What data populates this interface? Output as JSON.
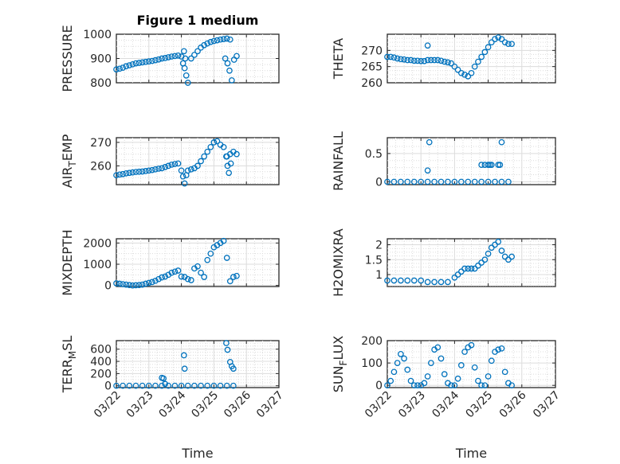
{
  "chart_data": [
    {
      "id": "pressure",
      "type": "scatter",
      "title": "Figure 1 medium",
      "ylabel": "PRESSURE",
      "ylim": [
        800,
        1000
      ],
      "yticks": [
        800,
        900,
        1000
      ],
      "xlim": [
        0,
        5
      ],
      "xticks": [],
      "series": [
        {
          "color": "#0072BD",
          "x": [
            0,
            0.1,
            0.2,
            0.3,
            0.4,
            0.5,
            0.6,
            0.7,
            0.8,
            0.9,
            1.0,
            1.1,
            1.2,
            1.3,
            1.4,
            1.5,
            1.6,
            1.7,
            1.8,
            1.9,
            2.0,
            2.05,
            2.1,
            2.15,
            2.2,
            2.3,
            2.4,
            2.5,
            2.6,
            2.7,
            2.8,
            2.9,
            3.0,
            3.1,
            3.2,
            3.3,
            3.4,
            3.5,
            2.08,
            2.12,
            3.35,
            3.42,
            3.48,
            3.55,
            3.62,
            3.7
          ],
          "y": [
            855,
            858,
            862,
            868,
            872,
            876,
            880,
            882,
            884,
            886,
            888,
            890,
            893,
            896,
            900,
            902,
            905,
            908,
            910,
            912,
            908,
            880,
            860,
            830,
            800,
            900,
            915,
            930,
            945,
            955,
            962,
            968,
            972,
            975,
            978,
            980,
            982,
            978,
            930,
            900,
            900,
            880,
            850,
            810,
            895,
            910
          ]
        }
      ]
    },
    {
      "id": "theta",
      "type": "scatter",
      "ylabel": "THETA",
      "ylim": [
        260,
        275
      ],
      "yticks": [
        260,
        265,
        270
      ],
      "xlim": [
        0,
        5
      ],
      "xticks": [],
      "series": [
        {
          "color": "#0072BD",
          "x": [
            0,
            0.1,
            0.2,
            0.3,
            0.4,
            0.5,
            0.6,
            0.7,
            0.8,
            0.9,
            1.0,
            1.1,
            1.2,
            1.3,
            1.4,
            1.5,
            1.6,
            1.7,
            1.8,
            1.9,
            2.0,
            2.1,
            2.2,
            2.3,
            2.4,
            2.5,
            2.6,
            2.7,
            2.8,
            2.9,
            3.0,
            3.1,
            3.2,
            3.3,
            3.4,
            3.5,
            3.6,
            3.7,
            1.2
          ],
          "y": [
            268,
            268,
            267.8,
            267.5,
            267.3,
            267.2,
            267,
            267,
            266.8,
            266.8,
            266.7,
            266.7,
            267,
            267,
            267,
            267,
            266.8,
            266.5,
            266.3,
            266,
            265,
            264,
            263,
            262.5,
            262,
            263,
            265,
            266.5,
            268,
            269.5,
            271,
            272.5,
            273.5,
            274,
            273.5,
            272.5,
            272,
            272,
            271.5
          ]
        }
      ]
    },
    {
      "id": "airtemp",
      "type": "scatter",
      "ylabel": "AIR",
      "ylabel_sub": "T",
      "ylabel_tail": "EMP",
      "ylim": [
        252,
        272
      ],
      "yticks": [
        260,
        270
      ],
      "xlim": [
        0,
        5
      ],
      "xticks": [],
      "series": [
        {
          "color": "#0072BD",
          "x": [
            0,
            0.1,
            0.2,
            0.3,
            0.4,
            0.5,
            0.6,
            0.7,
            0.8,
            0.9,
            1.0,
            1.1,
            1.2,
            1.3,
            1.4,
            1.5,
            1.6,
            1.7,
            1.8,
            1.9,
            2.0,
            2.05,
            2.1,
            2.15,
            2.2,
            2.3,
            2.4,
            2.5,
            2.6,
            2.7,
            2.8,
            2.9,
            3.0,
            3.1,
            3.2,
            3.3,
            3.4,
            3.5,
            3.6,
            3.7,
            3.38,
            3.42,
            3.46,
            3.52
          ],
          "y": [
            256,
            256.3,
            256.5,
            256.8,
            257,
            257.2,
            257.4,
            257.5,
            257.6,
            257.8,
            258,
            258.2,
            258.5,
            258.8,
            259,
            259.5,
            260,
            260.5,
            260.8,
            261,
            258,
            255.5,
            252.5,
            256,
            258,
            258.5,
            259,
            260,
            262,
            264,
            266,
            268,
            270,
            270.5,
            269,
            268,
            264,
            265,
            266,
            265,
            264,
            260,
            257,
            261
          ]
        }
      ]
    },
    {
      "id": "rainfall",
      "type": "scatter",
      "ylabel": "RAINFALL",
      "ylim": [
        -0.05,
        0.78
      ],
      "yticks": [
        0,
        0.5
      ],
      "xlim": [
        0,
        5
      ],
      "xticks": [],
      "series": [
        {
          "color": "#0072BD",
          "x": [
            0,
            0.2,
            0.4,
            0.6,
            0.8,
            1.0,
            1.2,
            1.4,
            1.6,
            1.8,
            2.0,
            2.2,
            2.4,
            2.6,
            2.8,
            3.0,
            3.2,
            3.4,
            3.6,
            1.2,
            1.25,
            2.8,
            2.9,
            3.0,
            3.05,
            3.1,
            3.3,
            3.35,
            3.4
          ],
          "y": [
            0,
            0,
            0,
            0,
            0,
            0,
            0,
            0,
            0,
            0,
            0,
            0,
            0,
            0,
            0,
            0,
            0,
            0,
            0,
            0.2,
            0.7,
            0.3,
            0.3,
            0.3,
            0.3,
            0.3,
            0.3,
            0.3,
            0.7
          ]
        }
      ]
    },
    {
      "id": "mixdepth",
      "type": "scatter",
      "ylabel": "MIXDEPTH",
      "ylim": [
        -50,
        2200
      ],
      "yticks": [
        0,
        1000,
        2000
      ],
      "xlim": [
        0,
        5
      ],
      "xticks": [],
      "series": [
        {
          "color": "#0072BD",
          "x": [
            0,
            0.1,
            0.2,
            0.3,
            0.4,
            0.5,
            0.6,
            0.7,
            0.8,
            0.9,
            1.0,
            1.1,
            1.2,
            1.3,
            1.4,
            1.5,
            1.6,
            1.7,
            1.8,
            1.9,
            2.0,
            2.1,
            2.2,
            2.3,
            2.4,
            2.5,
            2.6,
            2.7,
            2.8,
            2.9,
            3.0,
            3.1,
            3.2,
            3.3,
            3.4,
            3.5,
            3.6,
            3.7
          ],
          "y": [
            100,
            80,
            60,
            40,
            20,
            0,
            10,
            20,
            40,
            80,
            120,
            160,
            220,
            300,
            380,
            420,
            500,
            600,
            650,
            700,
            420,
            400,
            300,
            250,
            800,
            900,
            600,
            400,
            1200,
            1500,
            1800,
            1900,
            2000,
            2100,
            1300,
            200,
            400,
            450
          ]
        }
      ]
    },
    {
      "id": "h2omixra",
      "type": "scatter",
      "ylabel": "H2OMIXRA",
      "ylim": [
        0.6,
        2.2
      ],
      "yticks": [
        1,
        1.5,
        2
      ],
      "xlim": [
        0,
        5
      ],
      "xticks": [],
      "series": [
        {
          "color": "#0072BD",
          "x": [
            0,
            0.2,
            0.4,
            0.6,
            0.8,
            1.0,
            1.2,
            1.4,
            1.6,
            1.8,
            2.0,
            2.1,
            2.2,
            2.3,
            2.4,
            2.5,
            2.6,
            2.7,
            2.8,
            2.9,
            3.0,
            3.1,
            3.2,
            3.3,
            3.4,
            3.5,
            3.6,
            3.7
          ],
          "y": [
            0.8,
            0.8,
            0.8,
            0.8,
            0.8,
            0.8,
            0.75,
            0.75,
            0.75,
            0.75,
            0.9,
            1.0,
            1.1,
            1.2,
            1.2,
            1.2,
            1.2,
            1.3,
            1.4,
            1.5,
            1.7,
            1.9,
            2.0,
            2.1,
            1.8,
            1.6,
            1.5,
            1.6
          ]
        }
      ]
    },
    {
      "id": "terrmsl",
      "type": "scatter",
      "ylabel": "TERR",
      "ylabel_sub": "M",
      "ylabel_tail": "SL",
      "ylim": [
        -30,
        740
      ],
      "yticks": [
        0,
        200,
        400,
        600
      ],
      "xlim": [
        0,
        5
      ],
      "xticks": [
        "03/22",
        "03/23",
        "03/24",
        "03/25",
        "03/26",
        "03/27"
      ],
      "xlabel": "Time",
      "series": [
        {
          "color": "#0072BD",
          "x": [
            0,
            0.2,
            0.4,
            0.6,
            0.8,
            1.0,
            1.2,
            1.4,
            1.6,
            1.8,
            2.0,
            2.2,
            2.4,
            2.6,
            2.8,
            3.0,
            3.2,
            3.4,
            3.6,
            1.4,
            1.45,
            1.5,
            2.08,
            2.1,
            3.38,
            3.42,
            3.5,
            3.55,
            3.6
          ],
          "y": [
            0,
            0,
            0,
            0,
            0,
            0,
            0,
            0,
            0,
            0,
            0,
            0,
            0,
            0,
            0,
            0,
            0,
            0,
            0,
            130,
            120,
            30,
            500,
            280,
            700,
            590,
            390,
            320,
            280
          ]
        }
      ]
    },
    {
      "id": "sunflux",
      "type": "scatter",
      "ylabel": "SUN",
      "ylabel_sub": "F",
      "ylabel_tail": "LUX",
      "ylim": [
        -10,
        200
      ],
      "yticks": [
        0,
        100,
        200
      ],
      "xlim": [
        0,
        5
      ],
      "xticks": [
        "03/22",
        "03/23",
        "03/24",
        "03/25",
        "03/26",
        "03/27"
      ],
      "xlabel": "Time",
      "series": [
        {
          "color": "#0072BD",
          "x": [
            0,
            0.1,
            0.2,
            0.3,
            0.4,
            0.5,
            0.6,
            0.7,
            0.8,
            0.9,
            1.0,
            1.1,
            1.2,
            1.3,
            1.4,
            1.5,
            1.6,
            1.7,
            1.8,
            1.9,
            2.0,
            2.1,
            2.2,
            2.3,
            2.4,
            2.5,
            2.6,
            2.7,
            2.8,
            2.9,
            3.0,
            3.1,
            3.2,
            3.3,
            3.4,
            3.5,
            3.6,
            3.7
          ],
          "y": [
            0,
            20,
            60,
            100,
            140,
            120,
            70,
            20,
            0,
            0,
            0,
            10,
            40,
            100,
            160,
            170,
            120,
            50,
            10,
            0,
            0,
            30,
            90,
            150,
            170,
            180,
            80,
            20,
            0,
            0,
            40,
            110,
            150,
            160,
            165,
            60,
            10,
            0
          ]
        }
      ]
    }
  ]
}
